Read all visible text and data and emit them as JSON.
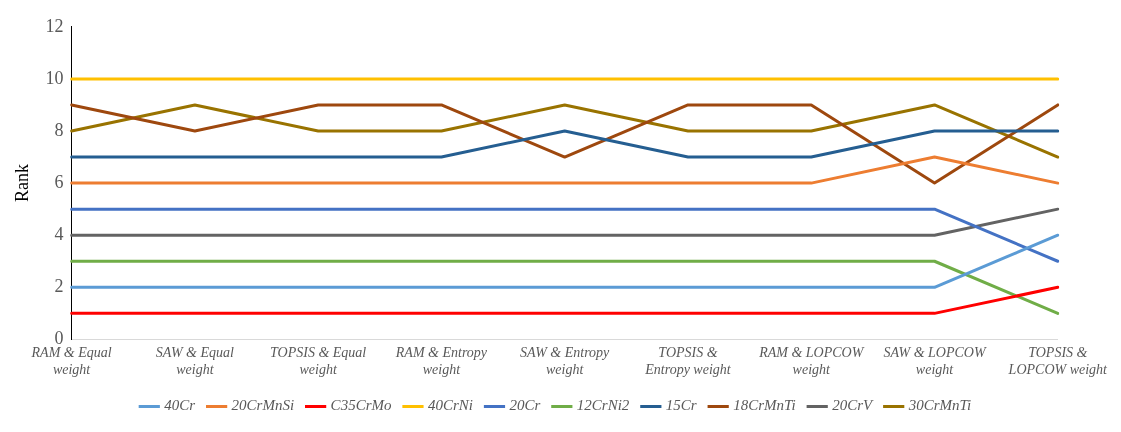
{
  "chart_data": {
    "type": "line",
    "ylabel": "Rank",
    "categories": [
      "RAM & Equal weight",
      "SAW & Equal weight",
      "TOPSIS & Equal weight",
      "RAM & Entropy weight",
      "SAW & Entropy weight",
      "TOPSIS & Entropy weight",
      "RAM & LOPCOW weight",
      "SAW & LOPCOW weight",
      "TOPSIS & LOPCOW weight"
    ],
    "series": [
      {
        "name": "40Cr",
        "color": "#5b9bd5",
        "values": [
          2,
          2,
          2,
          2,
          2,
          2,
          2,
          2,
          4
        ]
      },
      {
        "name": "20CrMnSi",
        "color": "#ed7d31",
        "values": [
          6,
          6,
          6,
          6,
          6,
          6,
          6,
          7,
          6
        ]
      },
      {
        "name": "C35CrMo",
        "color": "#ff0000",
        "values": [
          1,
          1,
          1,
          1,
          1,
          1,
          1,
          1,
          2
        ]
      },
      {
        "name": "40CrNi",
        "color": "#ffc000",
        "values": [
          10,
          10,
          10,
          10,
          10,
          10,
          10,
          10,
          10
        ]
      },
      {
        "name": "20Cr",
        "color": "#4472c4",
        "values": [
          5,
          5,
          5,
          5,
          5,
          5,
          5,
          5,
          3
        ]
      },
      {
        "name": "12CrNi2",
        "color": "#70ad47",
        "values": [
          3,
          3,
          3,
          3,
          3,
          3,
          3,
          3,
          1
        ]
      },
      {
        "name": "15Cr",
        "color": "#255e91",
        "values": [
          7,
          7,
          7,
          7,
          8,
          7,
          7,
          8,
          8
        ]
      },
      {
        "name": "18CrMnTi",
        "color": "#9e480e",
        "values": [
          9,
          8,
          9,
          9,
          7,
          9,
          9,
          6,
          9
        ]
      },
      {
        "name": "20CrV",
        "color": "#636363",
        "values": [
          4,
          4,
          4,
          4,
          4,
          4,
          4,
          4,
          5
        ]
      },
      {
        "name": "30CrMnTi",
        "color": "#997300",
        "values": [
          8,
          9,
          8,
          8,
          9,
          8,
          8,
          9,
          7
        ]
      }
    ],
    "ylim": [
      0,
      12
    ],
    "yticks": [
      0,
      2,
      4,
      6,
      8,
      10,
      12
    ],
    "grid": false,
    "legend": "bottom",
    "marker": "none",
    "line_style": "solid"
  }
}
